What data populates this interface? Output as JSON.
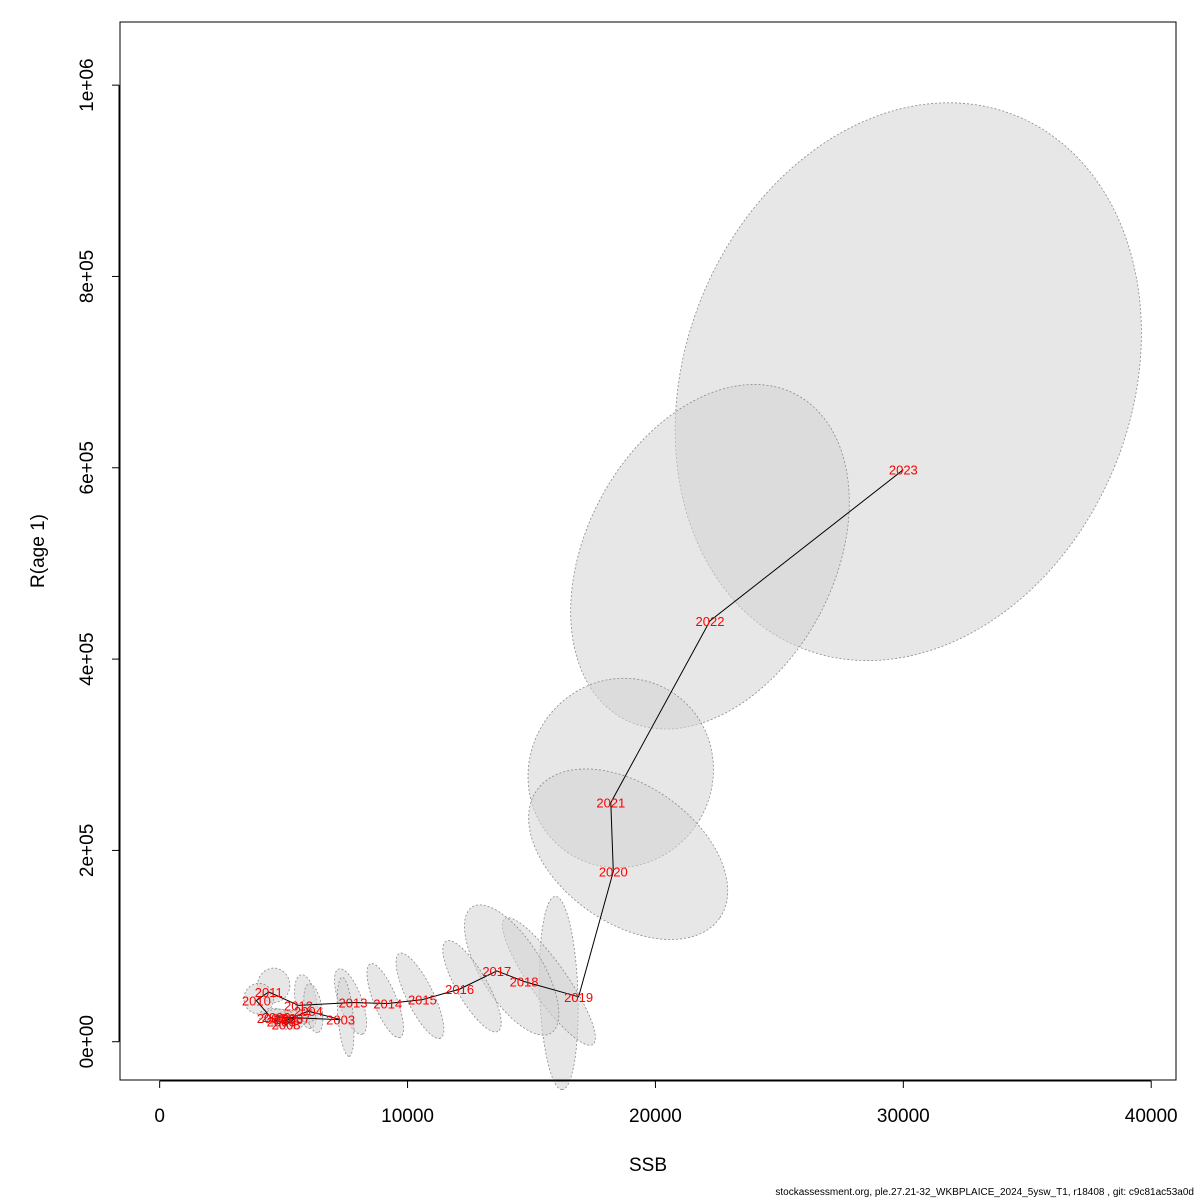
{
  "chart_data": {
    "type": "scatter",
    "xlabel": "SSB",
    "ylabel": "R(age 1)",
    "xlim": [
      -1600,
      41000
    ],
    "ylim": [
      -40000,
      1066000
    ],
    "x_ticks": [
      0,
      10000,
      20000,
      30000,
      40000
    ],
    "x_tick_labels": [
      "0",
      "10000",
      "20000",
      "30000",
      "40000"
    ],
    "y_ticks": [
      0,
      200000,
      400000,
      600000,
      800000,
      1000000
    ],
    "y_tick_labels": [
      "0e+00",
      "2e+05",
      "4e+05",
      "6e+05",
      "8e+05",
      "1e+06"
    ],
    "grid": false,
    "label_color": "#ff0000",
    "line_color": "#000000",
    "ellipse_fill": "#d3d3d3",
    "points": [
      {
        "year": "2002",
        "ssb": 4700,
        "r": 26000
      },
      {
        "year": "2003",
        "ssb": 7300,
        "r": 23000
      },
      {
        "year": "2004",
        "ssb": 6000,
        "r": 32000
      },
      {
        "year": "2005",
        "ssb": 5200,
        "r": 24000
      },
      {
        "year": "2006",
        "ssb": 4900,
        "r": 21000
      },
      {
        "year": "2007",
        "ssb": 5500,
        "r": 25000
      },
      {
        "year": "2008",
        "ssb": 5100,
        "r": 18000
      },
      {
        "year": "2009",
        "ssb": 4500,
        "r": 25000
      },
      {
        "year": "2010",
        "ssb": 3900,
        "r": 43000
      },
      {
        "year": "2011",
        "ssb": 4400,
        "r": 52000
      },
      {
        "year": "2012",
        "ssb": 5600,
        "r": 38000
      },
      {
        "year": "2013",
        "ssb": 7800,
        "r": 41000
      },
      {
        "year": "2014",
        "ssb": 9200,
        "r": 40000
      },
      {
        "year": "2015",
        "ssb": 10600,
        "r": 44000
      },
      {
        "year": "2016",
        "ssb": 12100,
        "r": 55000
      },
      {
        "year": "2017",
        "ssb": 13600,
        "r": 74000
      },
      {
        "year": "2018",
        "ssb": 14700,
        "r": 63000
      },
      {
        "year": "2019",
        "ssb": 16900,
        "r": 47000
      },
      {
        "year": "2020",
        "ssb": 18300,
        "r": 178000
      },
      {
        "year": "2021",
        "ssb": 18200,
        "r": 250000
      },
      {
        "year": "2022",
        "ssb": 22200,
        "r": 440000
      },
      {
        "year": "2023",
        "ssb": 30000,
        "r": 598000
      }
    ],
    "ellipses": [
      {
        "year": "2023",
        "cx": 30200,
        "cy": 690000,
        "rx": 9000,
        "ry": 300000,
        "angle_deg": 22
      },
      {
        "year": "2022",
        "cx": 22200,
        "cy": 507000,
        "rx": 5000,
        "ry": 192000,
        "angle_deg": 28
      },
      {
        "year": "2021",
        "cx": 18600,
        "cy": 281000,
        "rx": 3700,
        "ry": 100000,
        "angle_deg": 30
      },
      {
        "year": "2020",
        "cx": 18900,
        "cy": 196000,
        "rx": 4500,
        "ry": 72000,
        "angle_deg": 35
      },
      {
        "year": "2019",
        "cx": 16100,
        "cy": 51000,
        "rx": 3900,
        "ry": 20000,
        "angle_deg": 88
      },
      {
        "year": "2018",
        "cx": 15700,
        "cy": 63000,
        "rx": 3100,
        "ry": 19000,
        "angle_deg": 55
      },
      {
        "year": "2017",
        "cx": 14200,
        "cy": 75000,
        "rx": 3000,
        "ry": 32000,
        "angle_deg": 58
      },
      {
        "year": "2016",
        "cx": 12600,
        "cy": 58000,
        "rx": 2100,
        "ry": 16000,
        "angle_deg": 60
      },
      {
        "year": "2015",
        "cx": 10500,
        "cy": 48000,
        "rx": 1900,
        "ry": 14000,
        "angle_deg": 64
      },
      {
        "year": "2014",
        "cx": 9100,
        "cy": 43000,
        "rx": 1600,
        "ry": 12000,
        "angle_deg": 68
      },
      {
        "year": "2013",
        "cx": 7700,
        "cy": 42000,
        "rx": 1400,
        "ry": 12000,
        "angle_deg": 70
      },
      {
        "year": "2003",
        "cx": 7500,
        "cy": 26000,
        "rx": 1600,
        "ry": 8000,
        "angle_deg": 85
      },
      {
        "year": "2012",
        "cx": 5900,
        "cy": 42000,
        "rx": 1100,
        "ry": 11000,
        "angle_deg": 80
      },
      {
        "year": "2004",
        "cx": 6200,
        "cy": 35000,
        "rx": 1000,
        "ry": 9000,
        "angle_deg": 80
      },
      {
        "year": "2011",
        "cx": 4600,
        "cy": 59000,
        "rx": 650,
        "ry": 18000,
        "angle_deg": 0
      },
      {
        "year": "2010",
        "cx": 4000,
        "cy": 45000,
        "rx": 600,
        "ry": 16000,
        "angle_deg": 0
      },
      {
        "year": "2009",
        "cx": 4600,
        "cy": 27000,
        "rx": 600,
        "ry": 8000,
        "angle_deg": 0
      },
      {
        "year": "2005",
        "cx": 5300,
        "cy": 25000,
        "rx": 700,
        "ry": 7000,
        "angle_deg": 0
      },
      {
        "year": "2006",
        "cx": 5000,
        "cy": 22000,
        "rx": 600,
        "ry": 6000,
        "angle_deg": 0
      },
      {
        "year": "2007",
        "cx": 5600,
        "cy": 26000,
        "rx": 700,
        "ry": 7000,
        "angle_deg": 0
      },
      {
        "year": "2008",
        "cx": 5200,
        "cy": 19000,
        "rx": 650,
        "ry": 6000,
        "angle_deg": 0
      },
      {
        "year": "2002",
        "cx": 4800,
        "cy": 27000,
        "rx": 600,
        "ry": 7000,
        "angle_deg": 0
      }
    ]
  },
  "footer": {
    "text": "stockassessment.org, ple.27.21-32_WKBPLAICE_2024_5ysw_T1, r18408 , git: c9c81ac53a0d"
  }
}
